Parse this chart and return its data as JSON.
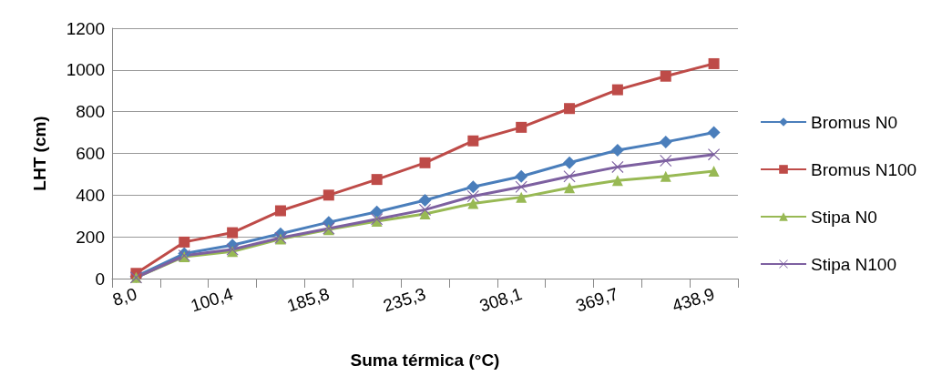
{
  "chart_data": {
    "type": "line",
    "xlabel": "Suma térmica (°C)",
    "ylabel": "LHT (cm)",
    "categories": [
      "8,0",
      null,
      "100,4",
      null,
      "185,8",
      null,
      "235,3",
      null,
      "308,1",
      null,
      "369,7",
      null,
      "438,9"
    ],
    "series": [
      {
        "name": "Bromus N0",
        "color": "#4a7ebb",
        "marker": "diamond",
        "values": [
          10,
          120,
          160,
          215,
          270,
          320,
          375,
          440,
          490,
          555,
          615,
          655,
          700
        ]
      },
      {
        "name": "Bromus N100",
        "color": "#be4b48",
        "marker": "square",
        "values": [
          25,
          175,
          220,
          325,
          400,
          475,
          555,
          660,
          725,
          815,
          905,
          970,
          1030
        ]
      },
      {
        "name": "Stipa N0",
        "color": "#98b954",
        "marker": "triangle",
        "values": [
          5,
          105,
          130,
          190,
          235,
          275,
          310,
          360,
          390,
          435,
          470,
          490,
          515
        ]
      },
      {
        "name": "Stipa N100",
        "color": "#7d60a0",
        "marker": "cross",
        "values": [
          5,
          110,
          140,
          195,
          240,
          285,
          330,
          395,
          440,
          490,
          535,
          565,
          595
        ]
      }
    ],
    "ylim": [
      0,
      1200
    ],
    "yticks": [
      0,
      200,
      400,
      600,
      800,
      1000,
      1200
    ],
    "grid": "y",
    "legend": "right"
  }
}
